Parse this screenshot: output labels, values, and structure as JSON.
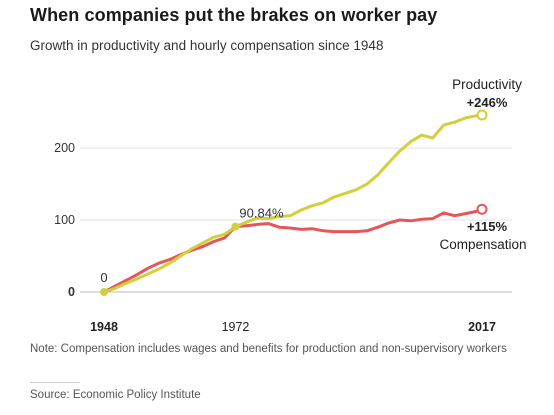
{
  "title": "When companies put the brakes on worker pay",
  "subtitle": "Growth in productivity and hourly compensation since 1948",
  "note": "Note: Compensation includes wages and benefits for production and non-supervisory workers",
  "source": "Source: Economic Policy Institute",
  "chart_data": {
    "type": "line",
    "xlim": [
      1948,
      2017
    ],
    "ylim": [
      0,
      250
    ],
    "yticks": [
      0,
      100,
      200
    ],
    "xtick_labels": [
      {
        "x": 1948,
        "label": "1948",
        "bold": true
      },
      {
        "x": 1972,
        "label": "1972",
        "bold": false
      },
      {
        "x": 2017,
        "label": "2017",
        "bold": true
      }
    ],
    "grid": "horizontal",
    "series": [
      {
        "name": "Productivity",
        "color": "#d2cf3d",
        "x": [
          1948,
          1950,
          1952,
          1954,
          1956,
          1958,
          1960,
          1962,
          1964,
          1966,
          1968,
          1970,
          1972,
          1974,
          1976,
          1978,
          1980,
          1982,
          1984,
          1986,
          1988,
          1990,
          1992,
          1994,
          1996,
          1998,
          2000,
          2002,
          2004,
          2006,
          2008,
          2010,
          2012,
          2014,
          2016,
          2017
        ],
        "values": [
          0,
          5,
          12,
          18,
          25,
          32,
          40,
          50,
          60,
          68,
          76,
          80,
          90.84,
          97,
          103,
          102,
          105,
          106,
          114,
          120,
          124,
          132,
          137,
          142,
          150,
          163,
          180,
          196,
          209,
          218,
          214,
          232,
          236,
          242,
          245,
          246
        ]
      },
      {
        "name": "Compensation",
        "color": "#e5565b",
        "x": [
          1948,
          1950,
          1952,
          1954,
          1956,
          1958,
          1960,
          1962,
          1964,
          1966,
          1968,
          1970,
          1972,
          1974,
          1976,
          1978,
          1980,
          1982,
          1984,
          1986,
          1988,
          1990,
          1992,
          1994,
          1996,
          1998,
          2000,
          2002,
          2004,
          2006,
          2008,
          2010,
          2012,
          2014,
          2016,
          2017
        ],
        "values": [
          0,
          8,
          16,
          24,
          33,
          40,
          45,
          52,
          58,
          63,
          70,
          75,
          90.84,
          92,
          94,
          95,
          90,
          89,
          87,
          88,
          85,
          84,
          84,
          84,
          85,
          90,
          96,
          100,
          99,
          101,
          102,
          110,
          106,
          109,
          112,
          115
        ]
      }
    ],
    "annotations": [
      {
        "text": "0",
        "x": 1948,
        "y": 0
      },
      {
        "text": "90.84%",
        "x": 1972,
        "y": 90.84
      },
      {
        "text": "Productivity",
        "x": 2017,
        "y": 246
      },
      {
        "text": "+246%",
        "x": 2017,
        "y": 246
      },
      {
        "text": "+115%",
        "x": 2017,
        "y": 115
      },
      {
        "text": "Compensation",
        "x": 2017,
        "y": 115
      }
    ]
  }
}
